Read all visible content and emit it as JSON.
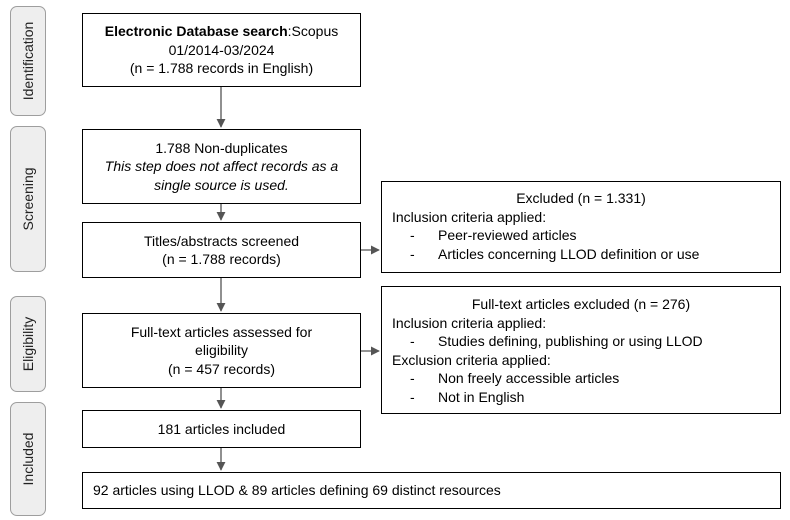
{
  "phases": {
    "identification": "Identification",
    "screening": "Screening",
    "eligibility": "Eligibility",
    "included": "Included"
  },
  "boxes": {
    "database_search": {
      "title_bold": "Electronic Database search",
      "title_rest": ":Scopus",
      "date_range": "01/2014-03/2024",
      "count": "(n = 1.788 records in English)"
    },
    "non_duplicates": {
      "line1": "1.788 Non-duplicates",
      "note_line1": "This step does not affect records as a",
      "note_line2": "single source is used."
    },
    "titles_screened": {
      "line1": "Titles/abstracts screened",
      "line2": "(n = 1.788 records)"
    },
    "excluded": {
      "heading": "Excluded (n = 1.331)",
      "inclusion_label": "Inclusion criteria applied:",
      "inclusion_items": [
        "Peer-reviewed articles",
        "Articles concerning LLOD definition or use"
      ]
    },
    "fulltext_assessed": {
      "line1": "Full-text articles assessed for",
      "line2": "eligibility",
      "line3": "(n = 457 records)"
    },
    "fulltext_excluded": {
      "heading": "Full-text articles excluded (n = 276)",
      "inclusion_label": "Inclusion criteria applied:",
      "inclusion_items": [
        "Studies defining, publishing or using LLOD"
      ],
      "exclusion_label": "Exclusion criteria applied:",
      "exclusion_items": [
        "Non freely accessible articles",
        "Not in English"
      ]
    },
    "articles_included": {
      "line1": "181 articles included"
    },
    "final": {
      "line1": "92 articles using LLOD & 89 articles defining 69 distinct resources"
    }
  },
  "bullet_dash": "-",
  "colors": {
    "arrow": "#555555",
    "phase_fill": "#eeeeee",
    "phase_border": "#9e9e9e"
  }
}
